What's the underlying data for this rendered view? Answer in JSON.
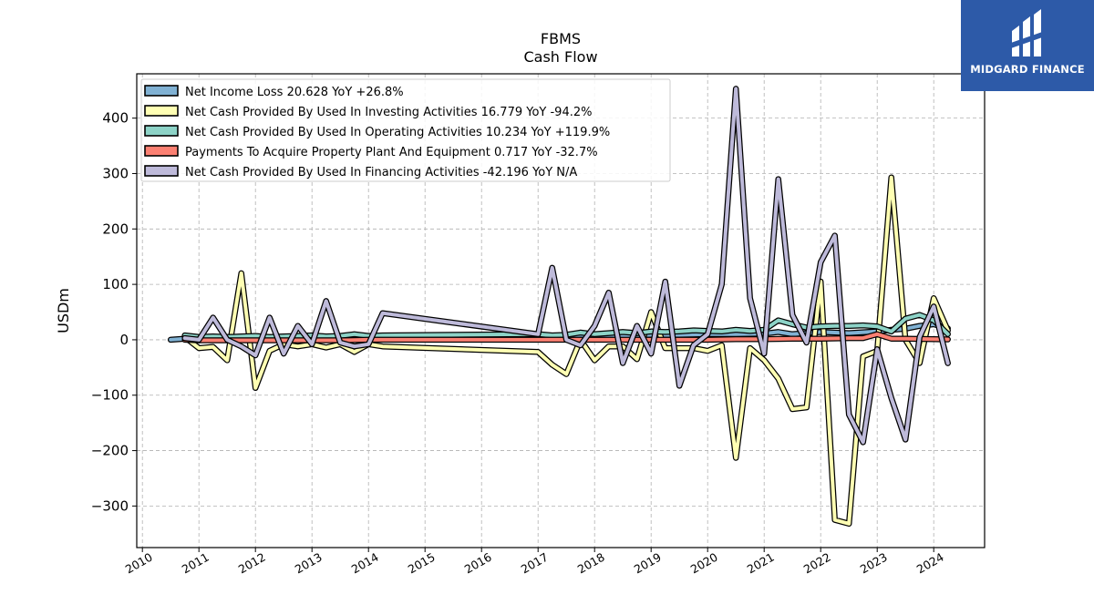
{
  "brand": {
    "name": "MIDGARD FINANCE",
    "bg_color": "#2d5aa8",
    "icon": "midgard-logo-icon"
  },
  "chart_data": {
    "type": "line",
    "title": "FBMS",
    "subtitle": "Cash Flow",
    "xlabel": "",
    "ylabel": "USDm",
    "xlim": [
      2009.9,
      2024.9
    ],
    "ylim": [
      -375,
      480
    ],
    "yticks": [
      -300,
      -200,
      -100,
      0,
      100,
      200,
      300,
      400
    ],
    "ytick_labels": [
      "−300",
      "−200",
      "−100",
      "0",
      "100",
      "200",
      "300",
      "400"
    ],
    "xticks": [
      2010,
      2011,
      2012,
      2013,
      2014,
      2015,
      2016,
      2017,
      2018,
      2019,
      2020,
      2021,
      2022,
      2023,
      2024
    ],
    "xtick_labels": [
      "2010",
      "2011",
      "2012",
      "2013",
      "2014",
      "2015",
      "2016",
      "2017",
      "2018",
      "2019",
      "2020",
      "2021",
      "2022",
      "2023",
      "2024"
    ],
    "grid": true,
    "legend_position": "top-left",
    "series": [
      {
        "name": "Net Income Loss",
        "legend_label": "Net Income Loss  20.628 YoY +26.8%",
        "color": "#80b1d3",
        "points": [
          [
            2010.5,
            0
          ],
          [
            2010.75,
            2
          ],
          [
            2011.0,
            3
          ],
          [
            2011.5,
            3
          ],
          [
            2012.0,
            3
          ],
          [
            2012.5,
            4
          ],
          [
            2013.0,
            4
          ],
          [
            2013.5,
            5
          ],
          [
            2014.0,
            5
          ],
          [
            2014.5,
            5
          ],
          [
            2015.0,
            6
          ],
          [
            2015.5,
            6
          ],
          [
            2016.0,
            6
          ],
          [
            2016.5,
            7
          ],
          [
            2017.0,
            7
          ],
          [
            2017.5,
            7
          ],
          [
            2018.0,
            8
          ],
          [
            2018.5,
            8
          ],
          [
            2019.0,
            9
          ],
          [
            2019.5,
            9
          ],
          [
            2020.0,
            10
          ],
          [
            2020.5,
            10
          ],
          [
            2021.0,
            11
          ],
          [
            2021.25,
            14
          ],
          [
            2021.5,
            10
          ],
          [
            2021.75,
            12
          ],
          [
            2022.0,
            14
          ],
          [
            2022.5,
            12
          ],
          [
            2023.0,
            15
          ],
          [
            2023.25,
            18
          ],
          [
            2023.5,
            20
          ],
          [
            2023.75,
            25
          ],
          [
            2024.0,
            28
          ],
          [
            2024.25,
            20.6
          ]
        ]
      },
      {
        "name": "Net Cash Provided By Used In Investing Activities",
        "legend_label": "Net Cash Provided By Used In Investing Activities  16.779 YoY -94.2%",
        "color": "#ffffb3",
        "points": [
          [
            2010.75,
            5
          ],
          [
            2011.0,
            -15
          ],
          [
            2011.25,
            -13
          ],
          [
            2011.5,
            -37
          ],
          [
            2011.75,
            120
          ],
          [
            2012.0,
            -87
          ],
          [
            2012.25,
            -20
          ],
          [
            2012.5,
            -8
          ],
          [
            2012.75,
            -12
          ],
          [
            2013.0,
            -8
          ],
          [
            2013.25,
            -14
          ],
          [
            2013.5,
            -8
          ],
          [
            2013.75,
            -22
          ],
          [
            2014.0,
            -8
          ],
          [
            2014.25,
            -12
          ],
          [
            2017.0,
            -22
          ],
          [
            2017.25,
            -45
          ],
          [
            2017.5,
            -62
          ],
          [
            2017.75,
            0
          ],
          [
            2018.0,
            -37
          ],
          [
            2018.25,
            -12
          ],
          [
            2018.5,
            -12
          ],
          [
            2018.75,
            -35
          ],
          [
            2019.0,
            50
          ],
          [
            2019.25,
            -15
          ],
          [
            2019.5,
            -15
          ],
          [
            2019.75,
            -15
          ],
          [
            2020.0,
            -20
          ],
          [
            2020.25,
            -10
          ],
          [
            2020.5,
            -213
          ],
          [
            2020.75,
            -15
          ],
          [
            2021.0,
            -37
          ],
          [
            2021.25,
            -70
          ],
          [
            2021.5,
            -125
          ],
          [
            2021.75,
            -122
          ],
          [
            2022.0,
            105
          ],
          [
            2022.25,
            -325
          ],
          [
            2022.5,
            -332
          ],
          [
            2022.75,
            -30
          ],
          [
            2023.0,
            -20
          ],
          [
            2023.25,
            293
          ],
          [
            2023.5,
            0
          ],
          [
            2023.75,
            -42
          ],
          [
            2024.0,
            75
          ],
          [
            2024.25,
            16.8
          ]
        ]
      },
      {
        "name": "Net Cash Provided By Used In Operating Activities",
        "legend_label": "Net Cash Provided By Used In Operating Activities  10.234 YoY +119.9%",
        "color": "#8dd3c7",
        "points": [
          [
            2010.75,
            8
          ],
          [
            2011.0,
            5
          ],
          [
            2011.25,
            6
          ],
          [
            2011.5,
            5
          ],
          [
            2011.75,
            6
          ],
          [
            2012.0,
            7
          ],
          [
            2012.25,
            5
          ],
          [
            2012.5,
            6
          ],
          [
            2012.75,
            7
          ],
          [
            2013.0,
            8
          ],
          [
            2013.25,
            6
          ],
          [
            2013.5,
            7
          ],
          [
            2013.75,
            10
          ],
          [
            2014.0,
            7
          ],
          [
            2014.25,
            8
          ],
          [
            2017.0,
            10
          ],
          [
            2017.25,
            8
          ],
          [
            2017.5,
            9
          ],
          [
            2017.75,
            13
          ],
          [
            2018.0,
            10
          ],
          [
            2018.25,
            12
          ],
          [
            2018.5,
            14
          ],
          [
            2018.75,
            12
          ],
          [
            2019.0,
            15
          ],
          [
            2019.25,
            14
          ],
          [
            2019.5,
            15
          ],
          [
            2019.75,
            17
          ],
          [
            2020.0,
            16
          ],
          [
            2020.25,
            15
          ],
          [
            2020.5,
            18
          ],
          [
            2020.75,
            16
          ],
          [
            2021.0,
            18
          ],
          [
            2021.25,
            35
          ],
          [
            2021.5,
            28
          ],
          [
            2021.75,
            22
          ],
          [
            2022.0,
            24
          ],
          [
            2022.25,
            25
          ],
          [
            2022.5,
            25
          ],
          [
            2022.75,
            26
          ],
          [
            2023.0,
            24
          ],
          [
            2023.25,
            15
          ],
          [
            2023.5,
            38
          ],
          [
            2023.75,
            45
          ],
          [
            2024.0,
            35
          ],
          [
            2024.25,
            10.2
          ]
        ]
      },
      {
        "name": "Payments To Acquire Property Plant And Equipment",
        "legend_label": "Payments To Acquire Property Plant And Equipment  0.717 YoY -32.7%",
        "color": "#fb8072",
        "points": [
          [
            2010.75,
            0
          ],
          [
            2011.0,
            -1
          ],
          [
            2011.5,
            -1
          ],
          [
            2012.0,
            -1
          ],
          [
            2012.5,
            -1
          ],
          [
            2013.0,
            -1
          ],
          [
            2013.5,
            -1
          ],
          [
            2014.0,
            0
          ],
          [
            2014.5,
            0
          ],
          [
            2015.0,
            0
          ],
          [
            2015.5,
            0
          ],
          [
            2016.0,
            0
          ],
          [
            2016.5,
            0
          ],
          [
            2017.0,
            0
          ],
          [
            2017.5,
            0
          ],
          [
            2018.0,
            0
          ],
          [
            2018.5,
            0
          ],
          [
            2019.0,
            0
          ],
          [
            2019.5,
            0
          ],
          [
            2020.0,
            0
          ],
          [
            2020.5,
            1
          ],
          [
            2021.0,
            1
          ],
          [
            2021.5,
            2
          ],
          [
            2022.0,
            2
          ],
          [
            2022.5,
            3
          ],
          [
            2022.75,
            3
          ],
          [
            2023.0,
            10
          ],
          [
            2023.25,
            2
          ],
          [
            2023.5,
            2
          ],
          [
            2024.0,
            1
          ],
          [
            2024.25,
            0.7
          ]
        ]
      },
      {
        "name": "Net Cash Provided By Used In Financing Activities",
        "legend_label": "Net Cash Provided By Used In Financing Activities  -42.196 YoY N/A",
        "color": "#bebada",
        "points": [
          [
            2010.75,
            3
          ],
          [
            2011.0,
            0
          ],
          [
            2011.25,
            40
          ],
          [
            2011.5,
            0
          ],
          [
            2011.75,
            -12
          ],
          [
            2012.0,
            -28
          ],
          [
            2012.25,
            40
          ],
          [
            2012.5,
            -25
          ],
          [
            2012.75,
            25
          ],
          [
            2013.0,
            -8
          ],
          [
            2013.25,
            70
          ],
          [
            2013.5,
            -5
          ],
          [
            2013.75,
            -12
          ],
          [
            2014.0,
            -8
          ],
          [
            2014.25,
            48
          ],
          [
            2017.0,
            10
          ],
          [
            2017.25,
            130
          ],
          [
            2017.5,
            0
          ],
          [
            2017.75,
            -10
          ],
          [
            2018.0,
            25
          ],
          [
            2018.25,
            85
          ],
          [
            2018.5,
            -42
          ],
          [
            2018.75,
            25
          ],
          [
            2019.0,
            -25
          ],
          [
            2019.25,
            105
          ],
          [
            2019.5,
            -83
          ],
          [
            2019.75,
            -10
          ],
          [
            2020.0,
            10
          ],
          [
            2020.25,
            100
          ],
          [
            2020.5,
            453
          ],
          [
            2020.75,
            75
          ],
          [
            2021.0,
            -25
          ],
          [
            2021.25,
            290
          ],
          [
            2021.5,
            45
          ],
          [
            2021.75,
            -5
          ],
          [
            2022.0,
            140
          ],
          [
            2022.25,
            188
          ],
          [
            2022.5,
            -135
          ],
          [
            2022.75,
            -185
          ],
          [
            2023.0,
            -17
          ],
          [
            2023.25,
            -105
          ],
          [
            2023.5,
            -180
          ],
          [
            2023.75,
            5
          ],
          [
            2024.0,
            60
          ],
          [
            2024.25,
            -42.2
          ]
        ]
      }
    ]
  }
}
